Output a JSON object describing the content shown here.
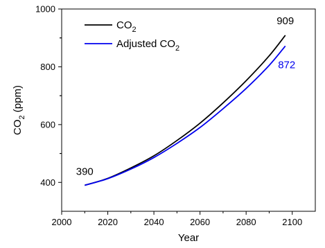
{
  "colors": {
    "co2": "#000000",
    "adjusted": "#0000ee",
    "axis": "#000000"
  },
  "chart_data": {
    "type": "line",
    "xlabel": "Year",
    "ylabel": {
      "text": "CO",
      "sub": "2",
      "unit": " (ppm)"
    },
    "xlim": [
      2000,
      2110
    ],
    "ylim": [
      300,
      1000
    ],
    "xticks": [
      2000,
      2020,
      2040,
      2060,
      2080,
      2100
    ],
    "yticks": [
      400,
      600,
      800,
      1000
    ],
    "legend_position": "top-left",
    "series": [
      {
        "name": "CO",
        "name_sub": "2",
        "name_suffix": "",
        "color": "#000000",
        "x": [
          2010,
          2020,
          2030,
          2040,
          2050,
          2060,
          2070,
          2080,
          2090,
          2097
        ],
        "y": [
          390,
          414,
          450,
          492,
          545,
          605,
          675,
          752,
          838,
          909
        ]
      },
      {
        "name": "Adjusted CO",
        "name_sub": "2",
        "name_suffix": "",
        "color": "#0000ee",
        "x": [
          2010,
          2020,
          2030,
          2040,
          2050,
          2060,
          2070,
          2080,
          2090,
          2097
        ],
        "y": [
          390,
          413,
          446,
          486,
          535,
          590,
          655,
          725,
          805,
          872
        ]
      }
    ],
    "annotations": [
      {
        "text": "390",
        "x": 2010,
        "y": 390,
        "color": "#000000"
      },
      {
        "text": "909",
        "x": 2097,
        "y": 909,
        "color": "#000000"
      },
      {
        "text": "872",
        "x": 2097,
        "y": 872,
        "color": "#0000ee"
      }
    ]
  }
}
